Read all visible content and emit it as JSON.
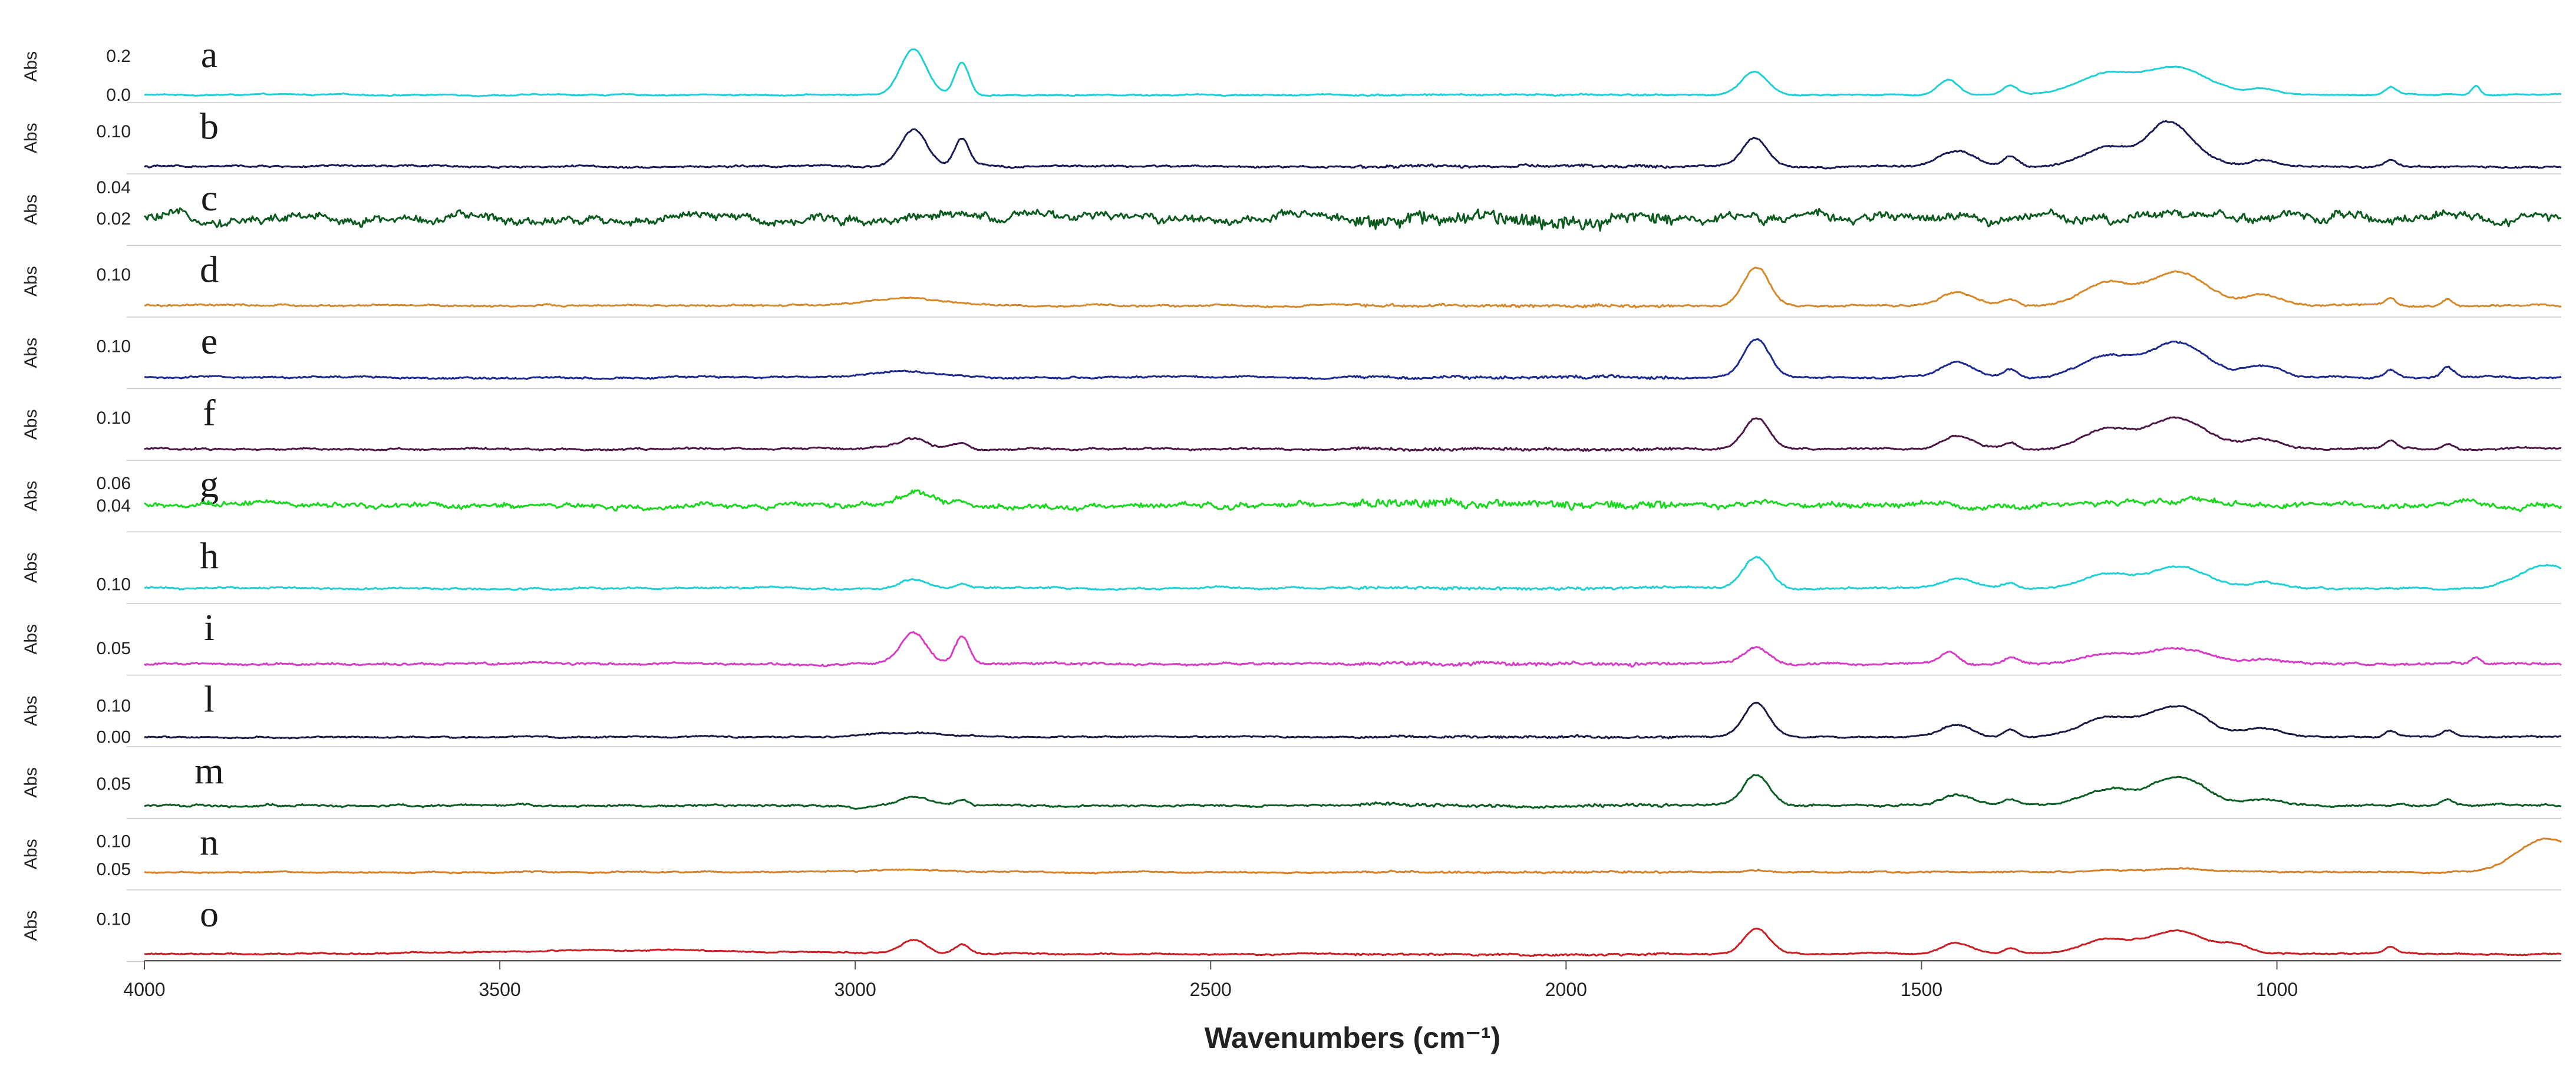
{
  "chart_data": {
    "type": "line",
    "title": "",
    "xlabel": "Wavenumbers (cm⁻¹)",
    "xlim": [
      4000,
      600
    ],
    "x_reversed": true,
    "x_ticks": [
      "4000",
      "3500",
      "3000",
      "2500",
      "2000",
      "1500",
      "1000"
    ],
    "x_tick_values": [
      4000,
      3500,
      3000,
      2500,
      2000,
      1500,
      1000
    ],
    "ylabel": "Abs",
    "series": [
      {
        "name": "a",
        "color": "#1fcfd6",
        "ylim": [
          -0.02,
          0.3
        ],
        "yticks": [
          "0.2",
          "0.0"
        ],
        "ytick_values": [
          0.2,
          0.0
        ],
        "baseline": 0.0,
        "noise": 0.003,
        "hf_noise": 0.003,
        "peaks": [
          [
            2918,
            0.24,
            18
          ],
          [
            2850,
            0.17,
            10
          ],
          [
            1735,
            0.12,
            18
          ],
          [
            1462,
            0.08,
            14
          ],
          [
            1375,
            0.05,
            10
          ],
          [
            1240,
            0.1,
            40
          ],
          [
            1140,
            0.14,
            45
          ],
          [
            1020,
            0.03,
            20
          ],
          [
            840,
            0.04,
            8
          ],
          [
            720,
            0.05,
            6
          ]
        ]
      },
      {
        "name": "b",
        "color": "#1a1a55",
        "ylim": [
          0.0,
          0.16
        ],
        "yticks": [
          "0.10"
        ],
        "ytick_values": [
          0.1
        ],
        "baseline": 0.01,
        "noise": 0.002,
        "hf_noise": 0.003,
        "peaks": [
          [
            2918,
            0.095,
            18
          ],
          [
            2850,
            0.07,
            10
          ],
          [
            1735,
            0.07,
            18
          ],
          [
            1450,
            0.04,
            25
          ],
          [
            1375,
            0.025,
            10
          ],
          [
            1240,
            0.05,
            35
          ],
          [
            1160,
            0.05,
            25
          ],
          [
            1140,
            0.07,
            35
          ],
          [
            1020,
            0.02,
            20
          ],
          [
            840,
            0.015,
            8
          ]
        ]
      },
      {
        "name": "c",
        "color": "#0b5a1e",
        "ylim": [
          0.005,
          0.045
        ],
        "yticks": [
          "0.04",
          "0.02"
        ],
        "ytick_values": [
          0.04,
          0.02
        ],
        "baseline": 0.02,
        "noise": 0.0025,
        "hf_noise": 0.0035,
        "peaks": [
          [
            2918,
            0.003,
            20
          ],
          [
            1735,
            0.002,
            20
          ],
          [
            1140,
            0.004,
            60
          ]
        ]
      },
      {
        "name": "d",
        "color": "#d6892a",
        "ylim": [
          0.0,
          0.16
        ],
        "yticks": [
          "0.10"
        ],
        "ytick_values": [
          0.1
        ],
        "baseline": 0.02,
        "noise": 0.002,
        "hf_noise": 0.003,
        "peaks": [
          [
            2930,
            0.02,
            50
          ],
          [
            1732,
            0.1,
            18
          ],
          [
            1450,
            0.035,
            22
          ],
          [
            1375,
            0.015,
            10
          ],
          [
            1240,
            0.055,
            35
          ],
          [
            1140,
            0.085,
            40
          ],
          [
            1020,
            0.03,
            25
          ],
          [
            840,
            0.02,
            8
          ],
          [
            760,
            0.02,
            8
          ]
        ]
      },
      {
        "name": "e",
        "color": "#1c2a8f",
        "ylim": [
          0.0,
          0.16
        ],
        "yticks": [
          "0.10"
        ],
        "ytick_values": [
          0.1
        ],
        "baseline": 0.02,
        "noise": 0.002,
        "hf_noise": 0.003,
        "peaks": [
          [
            2930,
            0.015,
            50
          ],
          [
            1732,
            0.1,
            18
          ],
          [
            1450,
            0.035,
            22
          ],
          [
            1375,
            0.02,
            10
          ],
          [
            1240,
            0.055,
            35
          ],
          [
            1140,
            0.09,
            40
          ],
          [
            1020,
            0.03,
            25
          ],
          [
            840,
            0.02,
            8
          ],
          [
            760,
            0.025,
            8
          ]
        ]
      },
      {
        "name": "f",
        "color": "#4a1746",
        "ylim": [
          0.0,
          0.16
        ],
        "yticks": [
          "0.10"
        ],
        "ytick_values": [
          0.1
        ],
        "baseline": 0.02,
        "noise": 0.002,
        "hf_noise": 0.003,
        "peaks": [
          [
            2918,
            0.025,
            20
          ],
          [
            2850,
            0.015,
            10
          ],
          [
            1732,
            0.08,
            18
          ],
          [
            1450,
            0.035,
            22
          ],
          [
            1375,
            0.015,
            10
          ],
          [
            1240,
            0.05,
            35
          ],
          [
            1140,
            0.08,
            40
          ],
          [
            1020,
            0.025,
            25
          ],
          [
            840,
            0.02,
            8
          ],
          [
            760,
            0.015,
            8
          ]
        ]
      },
      {
        "name": "g",
        "color": "#19d61f",
        "ylim": [
          0.02,
          0.075
        ],
        "yticks": [
          "0.06",
          "0.04"
        ],
        "ytick_values": [
          0.06,
          0.04
        ],
        "baseline": 0.04,
        "noise": 0.002,
        "hf_noise": 0.003,
        "peaks": [
          [
            2918,
            0.012,
            20
          ],
          [
            2850,
            0.006,
            10
          ],
          [
            1735,
            0.004,
            20
          ],
          [
            1140,
            0.004,
            60
          ]
        ]
      },
      {
        "name": "h",
        "color": "#1fd0d6",
        "ylim": [
          0.06,
          0.22
        ],
        "yticks": [
          "0.10"
        ],
        "ytick_values": [
          0.1
        ],
        "baseline": 0.09,
        "noise": 0.002,
        "hf_noise": 0.003,
        "peaks": [
          [
            2918,
            0.025,
            20
          ],
          [
            2850,
            0.012,
            10
          ],
          [
            1732,
            0.08,
            18
          ],
          [
            1450,
            0.025,
            22
          ],
          [
            1375,
            0.012,
            10
          ],
          [
            1240,
            0.035,
            35
          ],
          [
            1140,
            0.055,
            40
          ],
          [
            1020,
            0.015,
            25
          ],
          [
            620,
            0.06,
            40
          ]
        ]
      },
      {
        "name": "i",
        "color": "#d63cc6",
        "ylim": [
          0.02,
          0.1
        ],
        "yticks": [
          "0.05"
        ],
        "ytick_values": [
          0.05
        ],
        "baseline": 0.03,
        "noise": 0.001,
        "hf_noise": 0.002,
        "peaks": [
          [
            2918,
            0.04,
            18
          ],
          [
            2850,
            0.035,
            10
          ],
          [
            1732,
            0.02,
            18
          ],
          [
            1462,
            0.015,
            12
          ],
          [
            1375,
            0.008,
            10
          ],
          [
            1240,
            0.012,
            35
          ],
          [
            1140,
            0.02,
            45
          ],
          [
            1020,
            0.006,
            25
          ],
          [
            720,
            0.008,
            6
          ]
        ]
      },
      {
        "name": "l",
        "color": "#1a1a44",
        "ylim": [
          -0.02,
          0.18
        ],
        "yticks": [
          "0.10",
          "0.00"
        ],
        "ytick_values": [
          0.1,
          0.0
        ],
        "baseline": 0.0,
        "noise": 0.002,
        "hf_noise": 0.003,
        "peaks": [
          [
            2930,
            0.015,
            50
          ],
          [
            1732,
            0.11,
            18
          ],
          [
            1450,
            0.04,
            22
          ],
          [
            1375,
            0.025,
            10
          ],
          [
            1240,
            0.06,
            35
          ],
          [
            1140,
            0.1,
            40
          ],
          [
            1020,
            0.03,
            25
          ],
          [
            840,
            0.02,
            8
          ],
          [
            760,
            0.02,
            8
          ]
        ]
      },
      {
        "name": "m",
        "color": "#0b5e22",
        "ylim": [
          0.0,
          0.1
        ],
        "yticks": [
          "0.05"
        ],
        "ytick_values": [
          0.05
        ],
        "baseline": 0.015,
        "noise": 0.0015,
        "hf_noise": 0.002,
        "peaks": [
          [
            2918,
            0.015,
            20
          ],
          [
            2850,
            0.01,
            10
          ],
          [
            1732,
            0.05,
            18
          ],
          [
            1450,
            0.015,
            22
          ],
          [
            1375,
            0.008,
            10
          ],
          [
            1240,
            0.025,
            35
          ],
          [
            1140,
            0.045,
            40
          ],
          [
            1020,
            0.012,
            25
          ],
          [
            760,
            0.01,
            8
          ]
        ]
      },
      {
        "name": "n",
        "color": "#d6802a",
        "ylim": [
          0.02,
          0.13
        ],
        "yticks": [
          "0.10",
          "0.05"
        ],
        "ytick_values": [
          0.1,
          0.05
        ],
        "baseline": 0.045,
        "noise": 0.001,
        "hf_noise": 0.0015,
        "peaks": [
          [
            2930,
            0.004,
            60
          ],
          [
            1732,
            0.003,
            20
          ],
          [
            1140,
            0.005,
            80
          ],
          [
            620,
            0.06,
            40
          ]
        ]
      },
      {
        "name": "o",
        "color": "#c81e24",
        "ylim": [
          0.0,
          0.16
        ],
        "yticks": [
          "0.10"
        ],
        "ytick_values": [
          0.1
        ],
        "baseline": 0.01,
        "noise": 0.0015,
        "hf_noise": 0.002,
        "peaks": [
          [
            3300,
            0.01,
            200
          ],
          [
            2918,
            0.035,
            18
          ],
          [
            2850,
            0.025,
            10
          ],
          [
            1732,
            0.065,
            18
          ],
          [
            1450,
            0.03,
            22
          ],
          [
            1375,
            0.015,
            10
          ],
          [
            1240,
            0.035,
            35
          ],
          [
            1140,
            0.06,
            40
          ],
          [
            1060,
            0.02,
            20
          ],
          [
            840,
            0.015,
            8
          ]
        ]
      }
    ]
  }
}
